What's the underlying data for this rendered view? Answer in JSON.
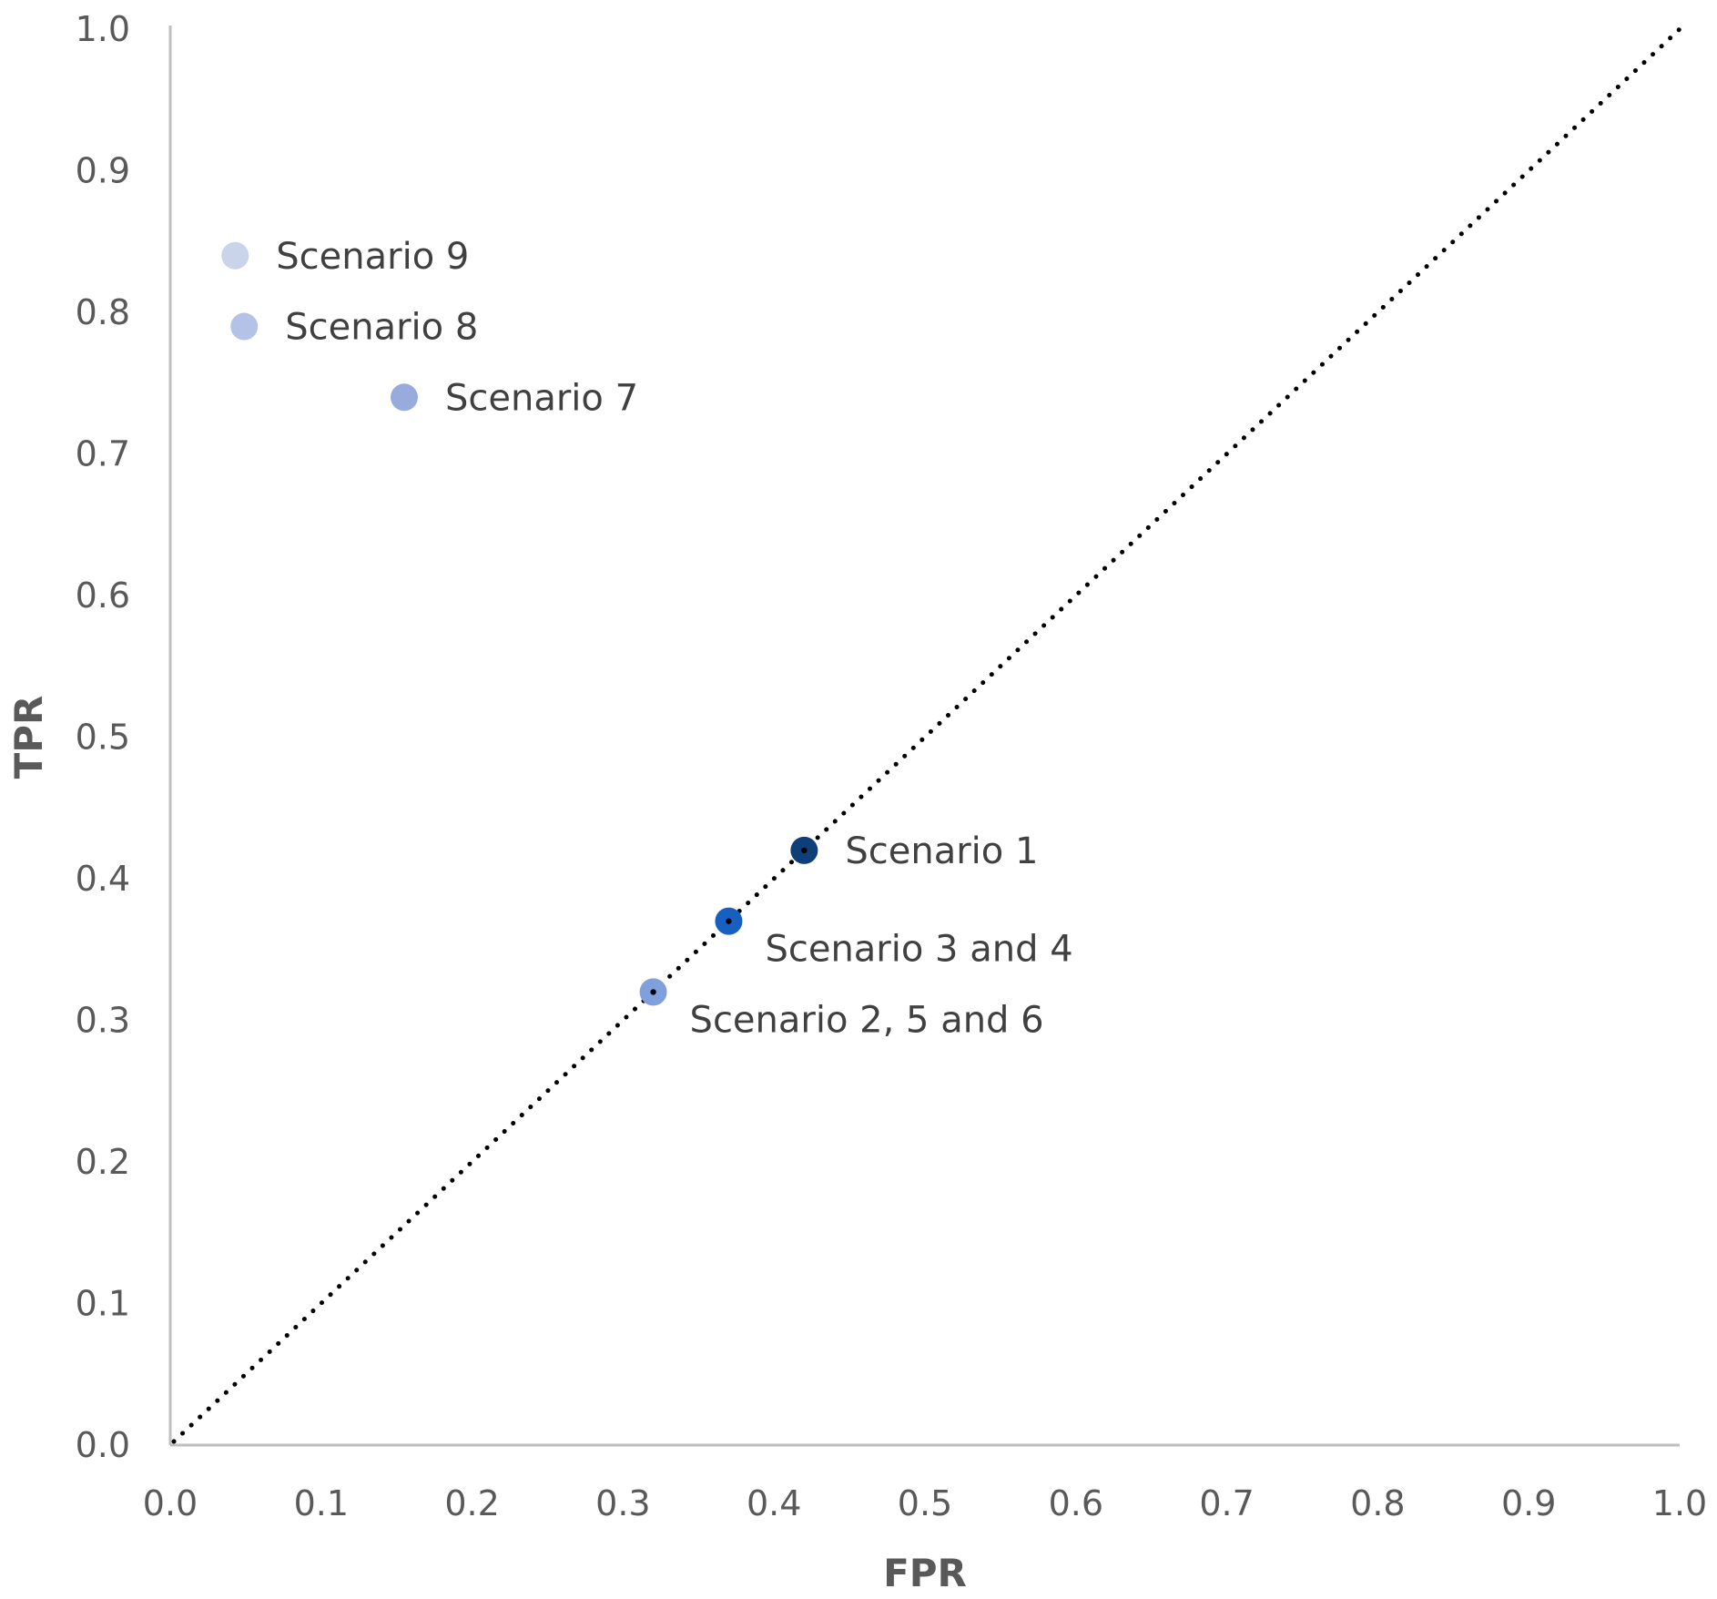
{
  "chart_data": {
    "type": "scatter",
    "title": "",
    "xlabel": "FPR",
    "ylabel": "TPR",
    "xlim": [
      0,
      1
    ],
    "ylim": [
      0,
      1
    ],
    "xticks": [
      "0.0",
      "0.1",
      "0.2",
      "0.3",
      "0.4",
      "0.5",
      "0.6",
      "0.7",
      "0.8",
      "0.9",
      "1.0"
    ],
    "yticks": [
      "0.0",
      "0.1",
      "0.2",
      "0.3",
      "0.4",
      "0.5",
      "0.6",
      "0.7",
      "0.8",
      "0.9",
      "1.0"
    ],
    "grid": false,
    "legend": "none",
    "reference_line": {
      "style": "dotted",
      "color": "#000000",
      "from": [
        0,
        0
      ],
      "to": [
        1,
        1
      ]
    },
    "points": [
      {
        "label": "Scenario 9",
        "x": 0.043,
        "y": 0.84,
        "color": "#c9d3ea",
        "label_side": "right"
      },
      {
        "label": "Scenario 8",
        "x": 0.049,
        "y": 0.79,
        "color": "#b3c2e6",
        "label_side": "right"
      },
      {
        "label": "Scenario 7",
        "x": 0.155,
        "y": 0.74,
        "color": "#97abdd",
        "label_side": "right"
      },
      {
        "label": "Scenario 1",
        "x": 0.42,
        "y": 0.42,
        "color": "#0f3f78",
        "label_side": "right"
      },
      {
        "label": "Scenario 3 and 4",
        "x": 0.37,
        "y": 0.37,
        "color": "#1760c2",
        "label_side": "below-right"
      },
      {
        "label": "Scenario 2, 5 and 6",
        "x": 0.32,
        "y": 0.32,
        "color": "#7fa0dc",
        "label_side": "below-right"
      }
    ]
  }
}
